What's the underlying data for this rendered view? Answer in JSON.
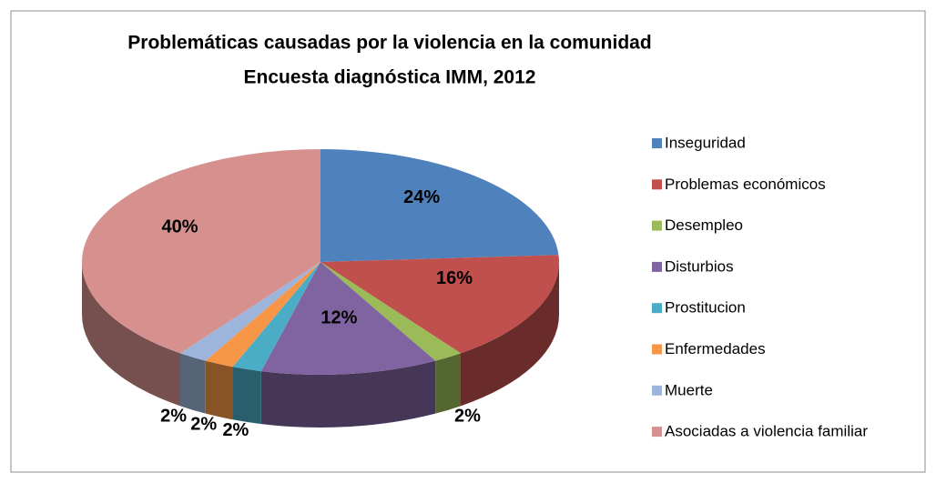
{
  "chart_data": {
    "type": "pie",
    "title": "Problemáticas causadas por la violencia en la comunidad",
    "subtitle": "Encuesta diagnóstica IMM, 2012",
    "categories": [
      "Inseguridad",
      "Problemas económicos",
      "Desempleo",
      "Disturbios",
      "Prostitucion",
      "Enfermedades",
      "Muerte",
      "Asociadas a violencia familiar"
    ],
    "values": [
      24,
      16,
      2,
      12,
      2,
      2,
      2,
      40
    ],
    "value_labels": [
      "24%",
      "16%",
      "2%",
      "12%",
      "2%",
      "2%",
      "2%",
      "40%"
    ],
    "colors": [
      "#4f81bd",
      "#c0504d",
      "#9bbb59",
      "#8064a2",
      "#4bacc6",
      "#f79646",
      "#9db5db",
      "#d6918f"
    ],
    "legend": "right"
  }
}
